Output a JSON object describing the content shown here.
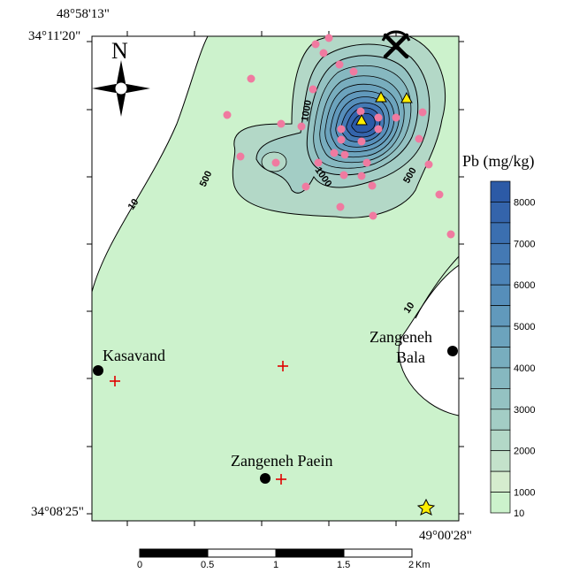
{
  "coordinates": {
    "top_lon": "48°58'13\"",
    "top_lat": "34°11'20\"",
    "bottom_lat": "34°08'25\"",
    "bottom_lon": "49°00'28\""
  },
  "north_label": "N",
  "places": [
    {
      "name": "Kasavand"
    },
    {
      "name": "Zangeneh Bala",
      "line1": "Zangeneh",
      "line2": "Bala"
    },
    {
      "name": "Zangeneh Paein"
    }
  ],
  "contour_labels": [
    "10",
    "10",
    "500",
    "500",
    "1000",
    "1000",
    "500"
  ],
  "legend": {
    "title": "Pb (mg/kg)",
    "ticks": [
      "8000",
      "7000",
      "6000",
      "5000",
      "4000",
      "3000",
      "2000",
      "1000",
      "10"
    ],
    "colors": [
      "#2c5aa6",
      "#3464ab",
      "#3b6fb0",
      "#4479b4",
      "#4d84b8",
      "#568eba",
      "#6199bc",
      "#6ca3bd",
      "#78adbe",
      "#86b8c0",
      "#94c2c2",
      "#a3cdc5",
      "#b3d8c7",
      "#c4e2cb",
      "#d5ecce",
      "#ccf2cc"
    ]
  },
  "scale": {
    "ticks": [
      "0",
      "0.5",
      "1",
      "1.5",
      "2"
    ],
    "unit": "Km"
  },
  "colors": {
    "land": "#ccf2cc",
    "sample_point": "#f07aa0",
    "mine_triangle": "#ffee00",
    "village": "#000000",
    "cross": "#e00000",
    "star": "#ffee00"
  },
  "icons": [
    "north-arrow-icon",
    "mine-pickaxe-icon",
    "star-icon",
    "cross-icon"
  ]
}
